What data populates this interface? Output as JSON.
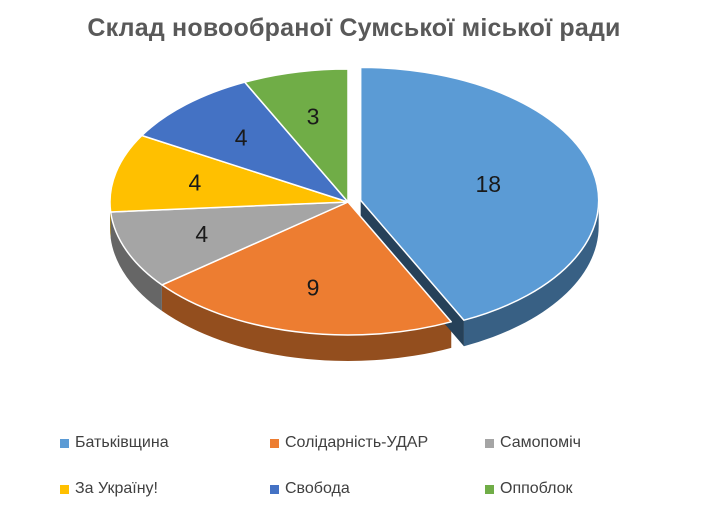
{
  "chart_data": {
    "type": "pie",
    "title": "Склад новообраної Сумської міської ради",
    "slices": [
      {
        "name": "Батьківщина",
        "value": 18,
        "color": "#5B9BD5"
      },
      {
        "name": "Солідарність-УДАР",
        "value": 9,
        "color": "#ED7D31"
      },
      {
        "name": "Самопоміч",
        "value": 4,
        "color": "#A5A5A5"
      },
      {
        "name": "За Україну!",
        "value": 4,
        "color": "#FFC000"
      },
      {
        "name": "Свобода",
        "value": 4,
        "color": "#4472C4"
      },
      {
        "name": "Оппоблок",
        "value": 3,
        "color": "#70AD47"
      }
    ],
    "exploded": [
      "Батьківщина"
    ],
    "legend_position": "bottom",
    "style": "3d"
  }
}
